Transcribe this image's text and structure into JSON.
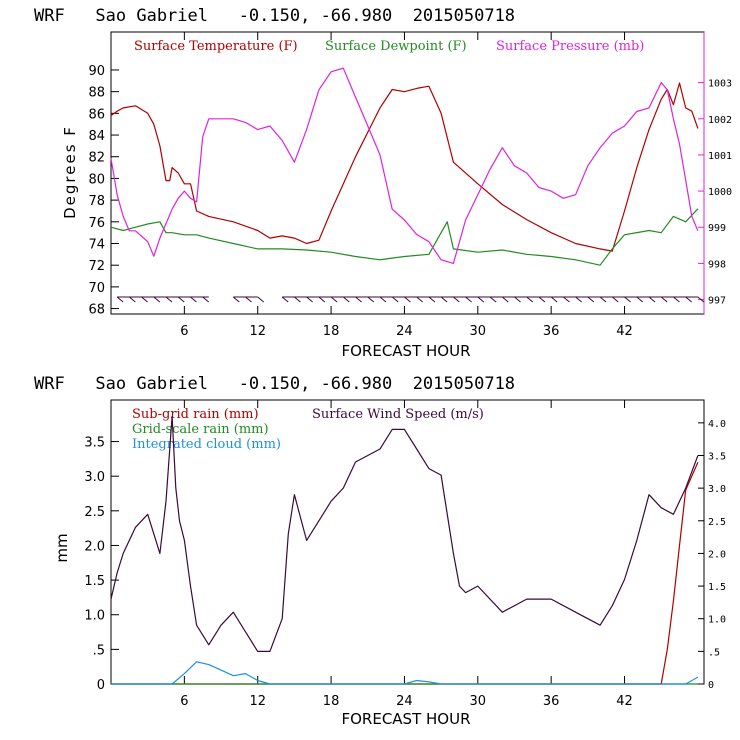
{
  "colors": {
    "temperature": "#b00000",
    "dewpoint": "#228b22",
    "pressure": "#dd22dd",
    "subgrid_rain": "#b00000",
    "gridscale_rain": "#228b22",
    "integrated_cloud": "#1e90dd",
    "wind_speed": "#3a0a3a",
    "axes": "#000000"
  },
  "chart_data": [
    {
      "type": "line",
      "title": "WRF   Sao Gabriel   -0.150, -66.980  2015050718",
      "xlabel": "FORECAST HOUR",
      "ylabel": "Degrees F",
      "xlim": [
        0,
        48.5
      ],
      "ylim": [
        67.5,
        93.5
      ],
      "y2lim": [
        996.6,
        1004.4
      ],
      "xticks": [
        6,
        12,
        18,
        24,
        30,
        36,
        42
      ],
      "xtick_labels": [
        "6",
        "12",
        "18",
        "24",
        "30",
        "36",
        "42"
      ],
      "yticks": [
        68,
        70,
        72,
        74,
        76,
        78,
        80,
        82,
        84,
        86,
        88,
        90
      ],
      "ytick_labels": [
        "68",
        "70",
        "72",
        "74",
        "76",
        "78",
        "80",
        "82",
        "84",
        "86",
        "88",
        "90"
      ],
      "y2ticks": [
        997,
        998,
        999,
        1000,
        1001,
        1002,
        1003
      ],
      "y2tick_labels": [
        "997",
        "998",
        "999",
        "1000",
        "1001",
        "1002",
        "1003"
      ],
      "series": [
        {
          "name": "Surface Temperature (F)",
          "axis": "left",
          "color_key": "temperature",
          "x": [
            0,
            0.5,
            1,
            2,
            3,
            3.5,
            4,
            4.5,
            4.8,
            5,
            5.5,
            6,
            6.5,
            7,
            8,
            10,
            12,
            13,
            14,
            15,
            16,
            17,
            18,
            20,
            22,
            23,
            24,
            25,
            26,
            27,
            28,
            30,
            32,
            34,
            36,
            38,
            40,
            41,
            42,
            43,
            44,
            45,
            45.5,
            46,
            46.5,
            47,
            47.5,
            48
          ],
          "y": [
            85.8,
            86.2,
            86.5,
            86.7,
            86,
            85,
            83,
            79.8,
            79.8,
            81,
            80.5,
            79.5,
            79.5,
            77,
            76.5,
            76,
            75.2,
            74.5,
            74.7,
            74.5,
            74,
            74.3,
            77,
            82,
            86.5,
            88.2,
            88,
            88.3,
            88.5,
            86,
            81.5,
            79.5,
            77.6,
            76.2,
            75,
            74,
            73.5,
            73.3,
            77,
            81,
            84.5,
            87.3,
            88.2,
            86.8,
            88.8,
            86.5,
            86.2,
            84.6
          ]
        },
        {
          "name": "Surface Dewpoint (F)",
          "axis": "left",
          "color_key": "dewpoint",
          "x": [
            0,
            1,
            2,
            3,
            4,
            4.5,
            5,
            6,
            7,
            8,
            10,
            12,
            14,
            16,
            18,
            20,
            22,
            24,
            26,
            27,
            27.5,
            28,
            30,
            32,
            34,
            36,
            38,
            40,
            41,
            42,
            44,
            45,
            46,
            47,
            48
          ],
          "y": [
            75.5,
            75.2,
            75.5,
            75.8,
            76,
            75,
            75,
            74.8,
            74.8,
            74.5,
            74,
            73.5,
            73.5,
            73.4,
            73.2,
            72.8,
            72.5,
            72.8,
            73,
            75,
            76,
            73.5,
            73.2,
            73.4,
            73,
            72.8,
            72.5,
            72,
            73.5,
            74.8,
            75.2,
            75,
            76.5,
            76,
            77.2
          ]
        },
        {
          "name": "Surface Pressure (mb)",
          "axis": "right",
          "color_key": "pressure",
          "x": [
            0,
            0.3,
            0.5,
            1,
            1.5,
            2,
            3,
            3.5,
            4,
            4.5,
            5,
            5.5,
            6,
            6.5,
            7,
            7.5,
            8,
            9,
            10,
            11,
            12,
            13,
            14,
            15,
            16,
            17,
            18,
            19,
            20,
            21,
            22,
            23,
            24,
            25,
            26,
            27,
            28,
            29,
            30,
            31,
            32,
            33,
            34,
            35,
            36,
            37,
            38,
            39,
            40,
            41,
            42,
            43,
            44,
            45,
            45.5,
            46,
            46.5,
            47,
            47.5,
            48
          ],
          "y": [
            1000.9,
            1000.3,
            999.9,
            999.3,
            998.9,
            998.9,
            998.6,
            998.2,
            998.7,
            999.1,
            999.5,
            999.8,
            1000.0,
            999.8,
            999.7,
            1001.5,
            1002.0,
            1002.0,
            1002.0,
            1001.9,
            1001.7,
            1001.8,
            1001.4,
            1000.8,
            1001.7,
            1002.8,
            1003.3,
            1003.4,
            1002.6,
            1001.8,
            1001.0,
            999.5,
            999.2,
            998.8,
            998.6,
            998.1,
            998.0,
            999.2,
            999.9,
            1000.6,
            1001.2,
            1000.7,
            1000.5,
            1000.1,
            1000.0,
            999.8,
            999.9,
            1000.7,
            1001.2,
            1001.6,
            1001.8,
            1002.2,
            1002.3,
            1003.0,
            1002.8,
            1002.0,
            1001.3,
            1000.3,
            999.3,
            998.9
          ]
        }
      ],
      "wind_barbs": {
        "segments": [
          [
            0.5,
            8
          ],
          [
            10,
            12
          ],
          [
            14,
            48
          ]
        ]
      }
    },
    {
      "type": "line",
      "title": "WRF   Sao Gabriel   -0.150, -66.980  2015050718",
      "xlabel": "FORECAST HOUR",
      "ylabel": "mm",
      "xlim": [
        0,
        48.5
      ],
      "ylim": [
        0,
        4.1
      ],
      "y2lim": [
        0,
        4.35
      ],
      "xticks": [
        6,
        12,
        18,
        24,
        30,
        36,
        42
      ],
      "xtick_labels": [
        "6",
        "12",
        "18",
        "24",
        "30",
        "36",
        "42"
      ],
      "yticks": [
        0,
        0.5,
        1,
        1.5,
        2,
        2.5,
        3,
        3.5
      ],
      "ytick_labels": [
        "0",
        ".5",
        "1.0",
        "1.5",
        "2.0",
        "2.5",
        "3.0",
        "3.5"
      ],
      "y2ticks": [
        0,
        0.5,
        1,
        1.5,
        2,
        2.5,
        3,
        3.5,
        4
      ],
      "y2tick_labels": [
        "0",
        ".5",
        "1.0",
        "1.5",
        "2.0",
        "2.5",
        "3.0",
        "3.5",
        "4.0"
      ],
      "series": [
        {
          "name": "Sub-grid rain (mm)",
          "axis": "left",
          "color_key": "subgrid_rain",
          "x": [
            0,
            44,
            45,
            45.5,
            46,
            46.5,
            47,
            48
          ],
          "y": [
            0,
            0,
            0,
            0.5,
            1.2,
            2.0,
            2.8,
            3.2
          ]
        },
        {
          "name": "Grid-scale rain (mm)",
          "axis": "left",
          "color_key": "gridscale_rain",
          "x": [
            0,
            48
          ],
          "y": [
            0,
            0
          ]
        },
        {
          "name": "Integrated cloud (mm)",
          "axis": "left",
          "color_key": "integrated_cloud",
          "x": [
            0,
            5,
            6,
            7,
            8,
            9,
            10,
            11,
            12,
            13,
            24,
            25,
            26,
            27,
            47,
            48
          ],
          "y": [
            0,
            0,
            0.15,
            0.32,
            0.28,
            0.2,
            0.12,
            0.15,
            0.05,
            0,
            0,
            0.05,
            0.03,
            0,
            0,
            0.1
          ]
        },
        {
          "name": "Surface Wind Speed (m/s)",
          "axis": "right",
          "color_key": "wind_speed",
          "x": [
            0,
            0.5,
            1,
            2,
            3,
            3.5,
            4,
            4.5,
            5,
            5.3,
            5.6,
            6,
            6.5,
            7,
            8,
            9,
            10,
            11,
            12,
            13,
            14,
            14.5,
            15,
            16,
            17,
            18,
            19,
            20,
            21,
            22,
            23,
            24,
            25,
            26,
            27,
            28,
            28.5,
            29,
            30,
            32,
            34,
            36,
            38,
            40,
            41,
            42,
            43,
            44,
            45,
            46,
            47,
            48
          ],
          "y": [
            1.3,
            1.7,
            2.0,
            2.4,
            2.6,
            2.3,
            2.0,
            2.8,
            4.1,
            3.0,
            2.5,
            2.2,
            1.5,
            0.9,
            0.6,
            0.9,
            1.1,
            0.8,
            0.5,
            0.5,
            1.0,
            2.3,
            2.9,
            2.2,
            2.5,
            2.8,
            3.0,
            3.4,
            3.5,
            3.6,
            3.9,
            3.9,
            3.6,
            3.3,
            3.2,
            2.0,
            1.5,
            1.4,
            1.5,
            1.1,
            1.3,
            1.3,
            1.1,
            0.9,
            1.2,
            1.6,
            2.2,
            2.9,
            2.7,
            2.6,
            3.0,
            3.5
          ]
        }
      ]
    }
  ]
}
